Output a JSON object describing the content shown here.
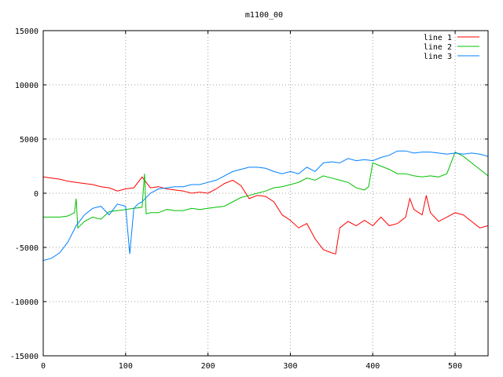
{
  "chart_data": {
    "type": "line",
    "title": "m1100_00",
    "xlabel": "",
    "ylabel": "",
    "xlim": [
      0,
      540
    ],
    "ylim": [
      -15000,
      15000
    ],
    "xticks": [
      0,
      100,
      200,
      300,
      400,
      500
    ],
    "yticks": [
      -15000,
      -10000,
      -5000,
      0,
      5000,
      10000,
      15000
    ],
    "grid": true,
    "legend_position": "top-right",
    "series": [
      {
        "name": "line 1",
        "color": "#ff0000",
        "x": [
          0,
          10,
          20,
          30,
          40,
          50,
          60,
          70,
          80,
          90,
          100,
          110,
          120,
          130,
          140,
          150,
          160,
          170,
          180,
          190,
          200,
          210,
          220,
          230,
          240,
          250,
          260,
          270,
          280,
          290,
          300,
          310,
          320,
          330,
          340,
          350,
          355,
          360,
          370,
          380,
          390,
          400,
          410,
          420,
          430,
          440,
          445,
          450,
          460,
          465,
          470,
          480,
          490,
          500,
          510,
          520,
          530,
          540
        ],
        "values": [
          1500,
          1400,
          1300,
          1100,
          1000,
          900,
          800,
          600,
          500,
          200,
          400,
          500,
          1500,
          500,
          600,
          400,
          300,
          200,
          0,
          100,
          0,
          400,
          900,
          1200,
          700,
          -500,
          -200,
          -300,
          -800,
          -2000,
          -2500,
          -3200,
          -2800,
          -4200,
          -5200,
          -5500,
          -5600,
          -3200,
          -2600,
          -3000,
          -2500,
          -3000,
          -2200,
          -3000,
          -2800,
          -2200,
          -500,
          -1500,
          -2000,
          -200,
          -1800,
          -2600,
          -2200,
          -1800,
          -2000,
          -2600,
          -3200,
          -3000
        ]
      },
      {
        "name": "line 2",
        "color": "#00c000",
        "x": [
          0,
          10,
          20,
          30,
          38,
          40,
          42,
          50,
          60,
          70,
          80,
          90,
          100,
          110,
          120,
          123,
          125,
          130,
          140,
          150,
          160,
          170,
          180,
          190,
          200,
          210,
          220,
          230,
          240,
          250,
          260,
          270,
          280,
          290,
          300,
          310,
          320,
          330,
          340,
          350,
          360,
          370,
          380,
          390,
          395,
          400,
          410,
          420,
          430,
          440,
          450,
          460,
          470,
          480,
          490,
          500,
          510,
          520,
          530,
          540
        ],
        "values": [
          -2200,
          -2200,
          -2200,
          -2100,
          -1800,
          -500,
          -3200,
          -2600,
          -2200,
          -2400,
          -1700,
          -1600,
          -1500,
          -1400,
          -1300,
          1800,
          -1900,
          -1800,
          -1800,
          -1500,
          -1600,
          -1600,
          -1400,
          -1500,
          -1400,
          -1300,
          -1200,
          -800,
          -400,
          -200,
          0,
          200,
          500,
          600,
          800,
          1000,
          1400,
          1200,
          1600,
          1400,
          1200,
          1000,
          500,
          300,
          600,
          2800,
          2500,
          2200,
          1800,
          1800,
          1600,
          1500,
          1600,
          1500,
          1800,
          3800,
          3400,
          2800,
          2200,
          1600
        ]
      },
      {
        "name": "line 3",
        "color": "#0080ff",
        "x": [
          0,
          10,
          20,
          30,
          40,
          50,
          60,
          70,
          80,
          90,
          100,
          105,
          110,
          115,
          120,
          130,
          140,
          150,
          160,
          170,
          180,
          190,
          200,
          210,
          220,
          230,
          240,
          250,
          260,
          270,
          280,
          290,
          300,
          310,
          320,
          330,
          340,
          350,
          360,
          370,
          380,
          390,
          400,
          410,
          420,
          430,
          440,
          450,
          460,
          470,
          480,
          490,
          500,
          510,
          520,
          530,
          540
        ],
        "values": [
          -6200,
          -6000,
          -5500,
          -4500,
          -3000,
          -2000,
          -1400,
          -1200,
          -2000,
          -1000,
          -1200,
          -5600,
          -1400,
          -1000,
          -800,
          0,
          400,
          500,
          600,
          600,
          800,
          800,
          1000,
          1200,
          1600,
          2000,
          2200,
          2400,
          2400,
          2300,
          2000,
          1800,
          2000,
          1800,
          2400,
          2000,
          2800,
          2900,
          2800,
          3200,
          3000,
          3100,
          3000,
          3300,
          3500,
          3900,
          3900,
          3700,
          3800,
          3800,
          3700,
          3600,
          3700,
          3600,
          3700,
          3600,
          3400
        ]
      }
    ]
  }
}
